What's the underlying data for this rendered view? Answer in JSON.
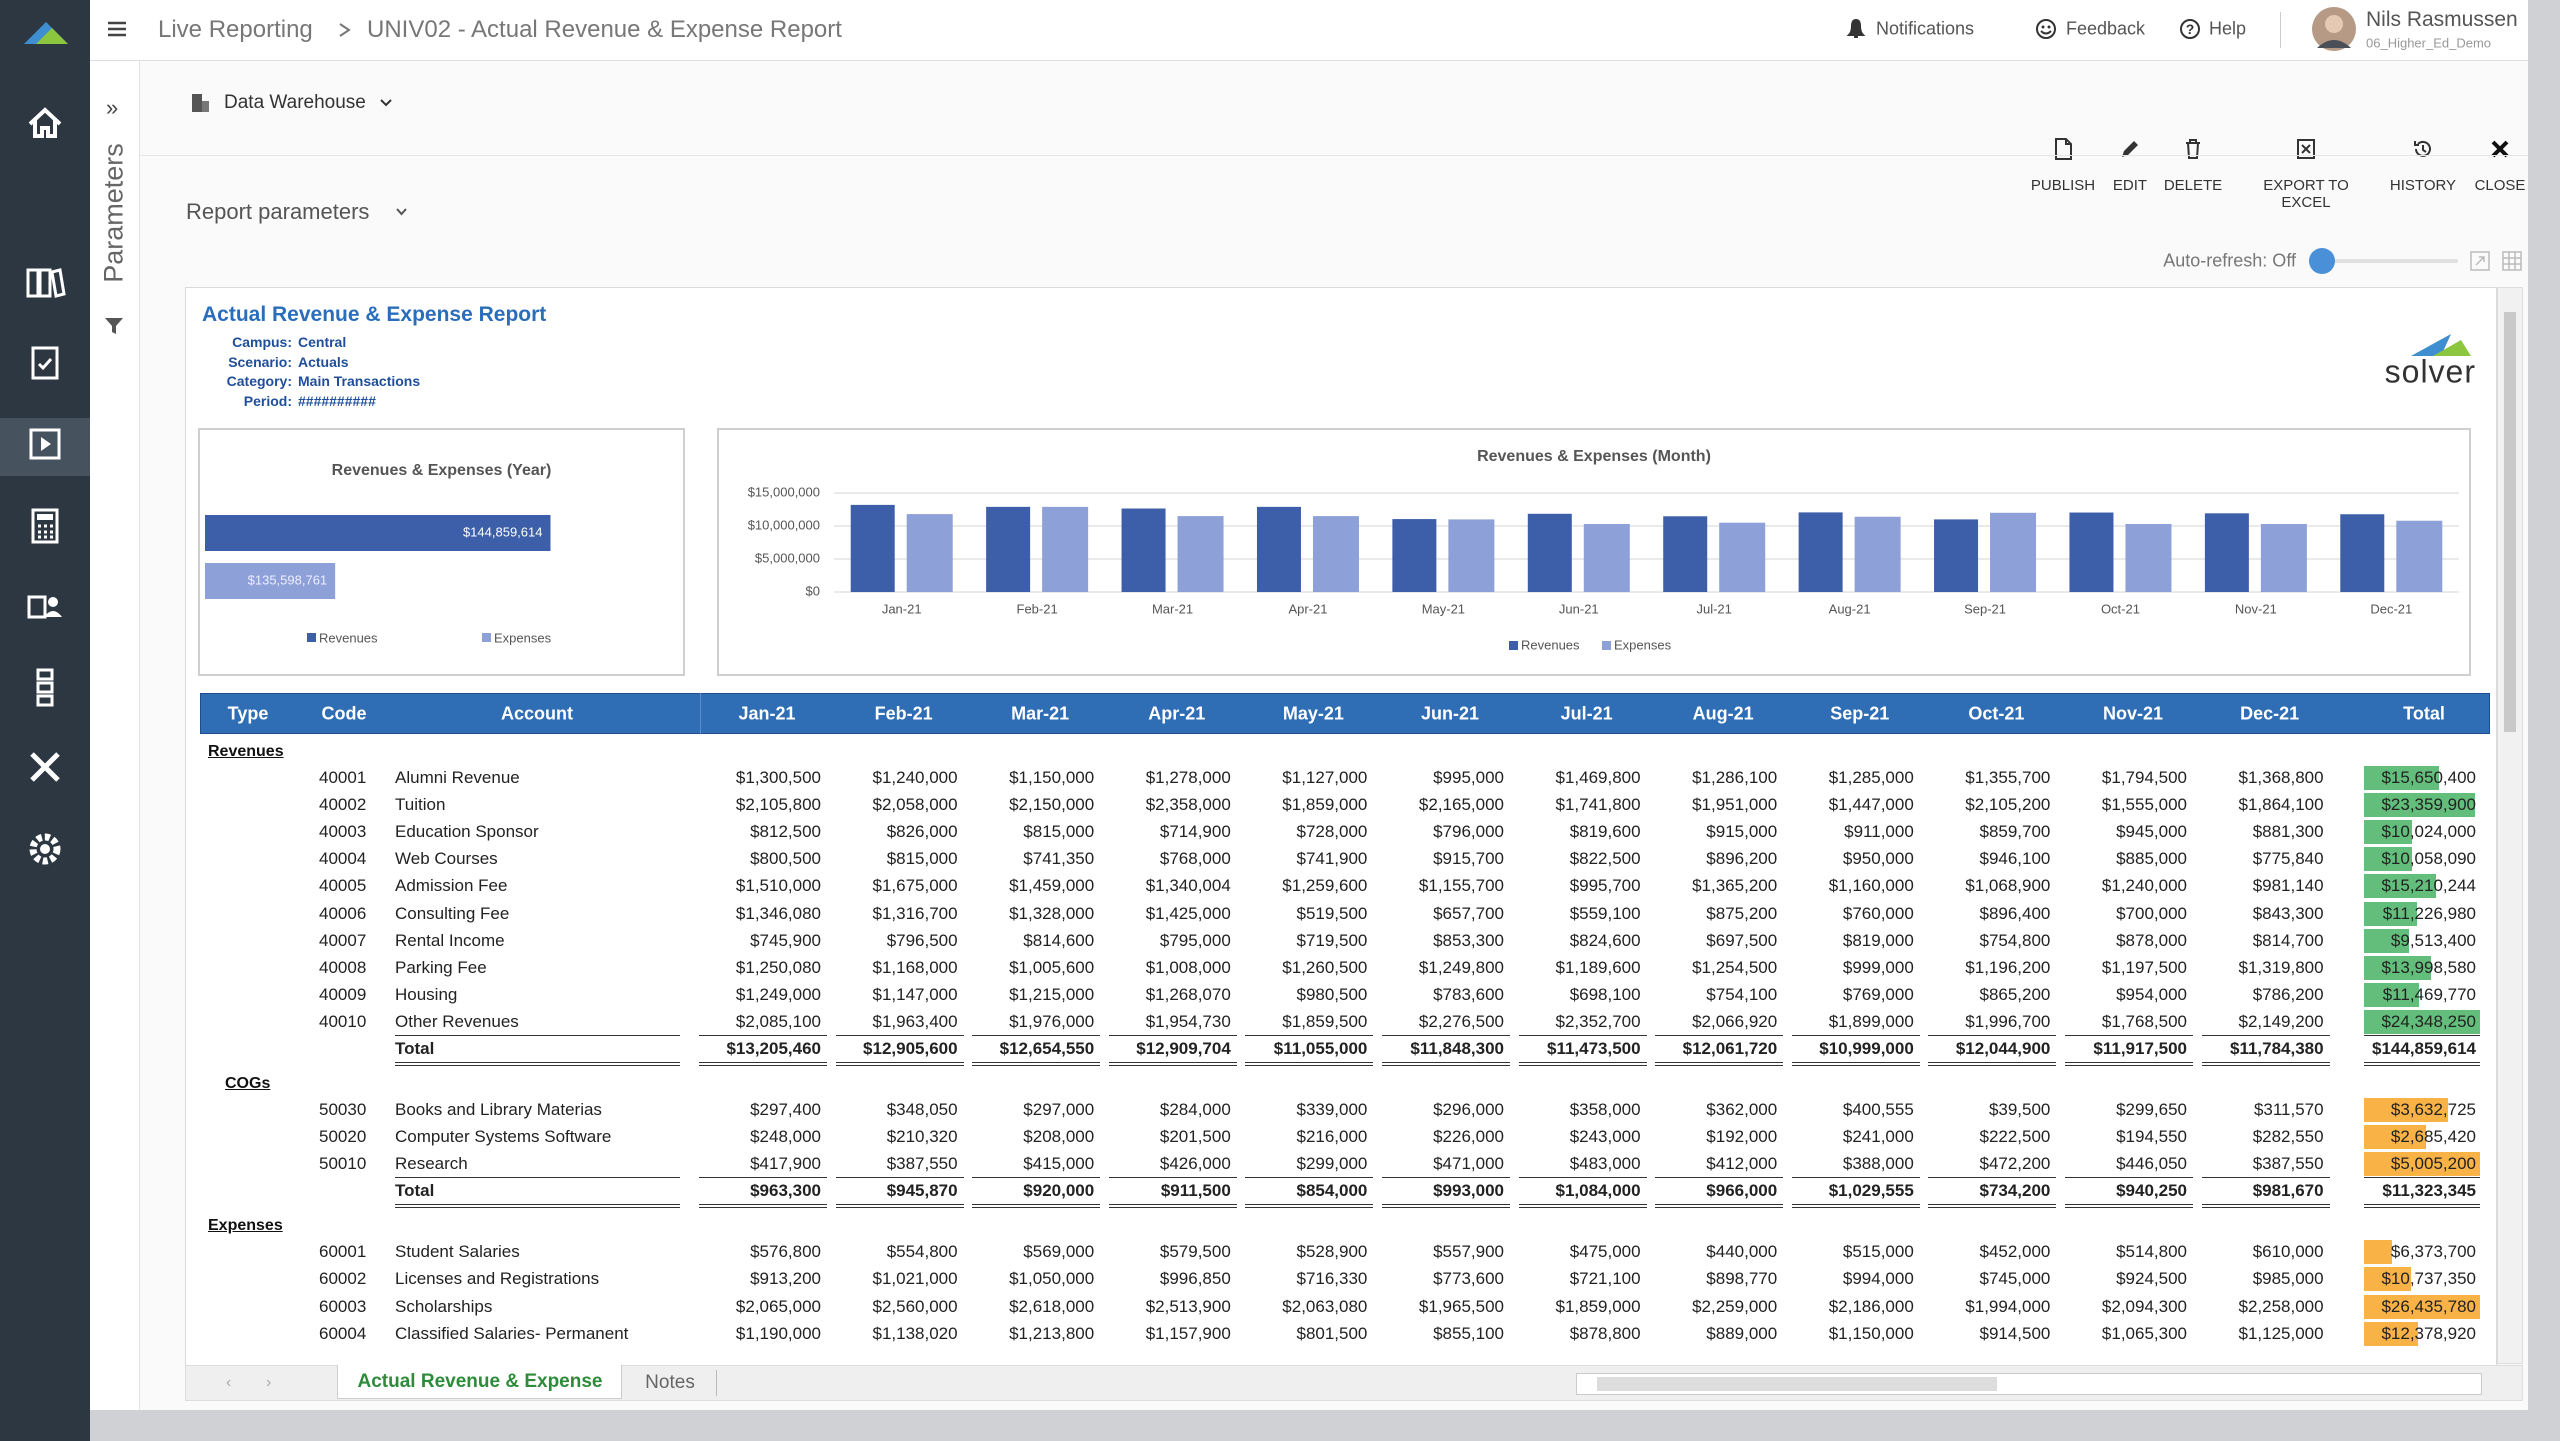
{
  "app": {
    "breadcrumb": [
      "Live Reporting",
      "UNIV02 - Actual Revenue & Expense Report"
    ],
    "notifications": "Notifications",
    "feedback": "Feedback",
    "help": "Help",
    "user": {
      "name": "Nils Rasmussen",
      "role": "06_Higher_Ed_Demo"
    }
  },
  "side_panel": "Parameters",
  "source": "Data Warehouse",
  "actions": [
    "PUBLISH",
    "EDIT",
    "DELETE",
    "EXPORT TO EXCEL",
    "HISTORY",
    "CLOSE"
  ],
  "report_parameters": "Report parameters",
  "auto_refresh": "Auto-refresh: Off",
  "report": {
    "title": "Actual Revenue & Expense Report",
    "parameters": [
      {
        "label": "Campus:",
        "value": "Central"
      },
      {
        "label": "Scenario:",
        "value": "Actuals"
      },
      {
        "label": "Category:",
        "value": "Main Transactions"
      },
      {
        "label": "Period:",
        "value": "##########"
      }
    ],
    "logo": "solver"
  },
  "chart_data": [
    {
      "type": "bar",
      "orientation": "horizontal",
      "title": "Revenues & Expenses (Year)",
      "series": [
        {
          "name": "Revenues",
          "color": "#3d5ea9",
          "values": [
            144859614
          ],
          "value_labels": [
            "$144,859,614"
          ]
        },
        {
          "name": "Expenses",
          "color": "#8da0d8",
          "values": [
            135598761
          ],
          "value_labels": [
            "$135,598,761"
          ]
        }
      ],
      "xlim": [
        130000000,
        150000000
      ]
    },
    {
      "type": "bar",
      "title": "Revenues & Expenses (Month)",
      "categories": [
        "Jan-21",
        "Feb-21",
        "Mar-21",
        "Apr-21",
        "May-21",
        "Jun-21",
        "Jul-21",
        "Aug-21",
        "Sep-21",
        "Oct-21",
        "Nov-21",
        "Dec-21"
      ],
      "series": [
        {
          "name": "Revenues",
          "color": "#3d5ea9",
          "values": [
            13200000,
            12900000,
            12650000,
            12900000,
            11050000,
            11850000,
            11470000,
            12060000,
            11000000,
            12040000,
            11920000,
            11780000
          ]
        },
        {
          "name": "Expenses",
          "color": "#8da0d8",
          "values": [
            11800000,
            12900000,
            11500000,
            11500000,
            11000000,
            10300000,
            10500000,
            11400000,
            12000000,
            10300000,
            10300000,
            10800000
          ]
        }
      ],
      "ylim": [
        0,
        15000000
      ],
      "yticks": [
        {
          "value": 0,
          "label": "$0"
        },
        {
          "value": 5000000,
          "label": "$5,000,000"
        },
        {
          "value": 10000000,
          "label": "$10,000,000"
        },
        {
          "value": 15000000,
          "label": "$15,000,000"
        }
      ],
      "grid": true
    }
  ],
  "table": {
    "columns": [
      "Type",
      "Code",
      "Account",
      "Jan-21",
      "Feb-21",
      "Mar-21",
      "Apr-21",
      "May-21",
      "Jun-21",
      "Jul-21",
      "Aug-21",
      "Sep-21",
      "Oct-21",
      "Nov-21",
      "Dec-21",
      "Total"
    ],
    "sections": [
      {
        "name": "Revenues",
        "bar_color": "#63be7b",
        "rows": [
          {
            "code": "40001",
            "account": "Alumni Revenue",
            "values": [
              "$1,300,500",
              "$1,240,000",
              "$1,150,000",
              "$1,278,000",
              "$1,127,000",
              "$995,000",
              "$1,469,800",
              "$1,286,100",
              "$1,285,000",
              "$1,355,700",
              "$1,794,500",
              "$1,368,800"
            ],
            "total": 15650400,
            "total_label": "$15,650,400"
          },
          {
            "code": "40002",
            "account": "Tuition",
            "values": [
              "$2,105,800",
              "$2,058,000",
              "$2,150,000",
              "$2,358,000",
              "$1,859,000",
              "$2,165,000",
              "$1,741,800",
              "$1,951,000",
              "$1,447,000",
              "$2,105,200",
              "$1,555,000",
              "$1,864,100"
            ],
            "total": 23359900,
            "total_label": "$23,359,900"
          },
          {
            "code": "40003",
            "account": "Education Sponsor",
            "values": [
              "$812,500",
              "$826,000",
              "$815,000",
              "$714,900",
              "$728,000",
              "$796,000",
              "$819,600",
              "$915,000",
              "$911,000",
              "$859,700",
              "$945,000",
              "$881,300"
            ],
            "total": 10024000,
            "total_label": "$10,024,000"
          },
          {
            "code": "40004",
            "account": "Web Courses",
            "values": [
              "$800,500",
              "$815,000",
              "$741,350",
              "$768,000",
              "$741,900",
              "$915,700",
              "$822,500",
              "$896,200",
              "$950,000",
              "$946,100",
              "$885,000",
              "$775,840"
            ],
            "total": 10058090,
            "total_label": "$10,058,090"
          },
          {
            "code": "40005",
            "account": "Admission Fee",
            "values": [
              "$1,510,000",
              "$1,675,000",
              "$1,459,000",
              "$1,340,004",
              "$1,259,600",
              "$1,155,700",
              "$995,700",
              "$1,365,200",
              "$1,160,000",
              "$1,068,900",
              "$1,240,000",
              "$981,140"
            ],
            "total": 15210244,
            "total_label": "$15,210,244"
          },
          {
            "code": "40006",
            "account": "Consulting Fee",
            "values": [
              "$1,346,080",
              "$1,316,700",
              "$1,328,000",
              "$1,425,000",
              "$519,500",
              "$657,700",
              "$559,100",
              "$875,200",
              "$760,000",
              "$896,400",
              "$700,000",
              "$843,300"
            ],
            "total": 11226980,
            "total_label": "$11,226,980"
          },
          {
            "code": "40007",
            "account": "Rental Income",
            "values": [
              "$745,900",
              "$796,500",
              "$814,600",
              "$795,000",
              "$719,500",
              "$853,300",
              "$824,600",
              "$697,500",
              "$819,000",
              "$754,800",
              "$878,000",
              "$814,700"
            ],
            "total": 9513400,
            "total_label": "$9,513,400"
          },
          {
            "code": "40008",
            "account": "Parking Fee",
            "values": [
              "$1,250,080",
              "$1,168,000",
              "$1,005,600",
              "$1,008,000",
              "$1,260,500",
              "$1,249,800",
              "$1,189,600",
              "$1,254,500",
              "$999,000",
              "$1,196,200",
              "$1,197,500",
              "$1,319,800"
            ],
            "total": 13998580,
            "total_label": "$13,998,580"
          },
          {
            "code": "40009",
            "account": "Housing",
            "values": [
              "$1,249,000",
              "$1,147,000",
              "$1,215,000",
              "$1,268,070",
              "$980,500",
              "$783,600",
              "$698,100",
              "$754,100",
              "$769,000",
              "$865,200",
              "$954,000",
              "$786,200"
            ],
            "total": 11469770,
            "total_label": "$11,469,770"
          },
          {
            "code": "40010",
            "account": "Other Revenues",
            "values": [
              "$2,085,100",
              "$1,963,400",
              "$1,976,000",
              "$1,954,730",
              "$1,859,500",
              "$2,276,500",
              "$2,352,700",
              "$2,066,920",
              "$1,899,000",
              "$1,996,700",
              "$1,768,500",
              "$2,149,200"
            ],
            "total": 24348250,
            "total_label": "$24,348,250"
          }
        ],
        "total": {
          "label": "Total",
          "values": [
            "$13,205,460",
            "$12,905,600",
            "$12,654,550",
            "$12,909,704",
            "$11,055,000",
            "$11,848,300",
            "$11,473,500",
            "$12,061,720",
            "$10,999,000",
            "$12,044,900",
            "$11,917,500",
            "$11,784,380"
          ],
          "total_label": "$144,859,614"
        }
      },
      {
        "name": "COGs",
        "bar_color": "#f8b246",
        "rows": [
          {
            "code": "50030",
            "account": "Books and Library Materias",
            "values": [
              "$297,400",
              "$348,050",
              "$297,000",
              "$284,000",
              "$339,000",
              "$296,000",
              "$358,000",
              "$362,000",
              "$400,555",
              "$39,500",
              "$299,650",
              "$311,570"
            ],
            "total": 3632725,
            "total_label": "$3,632,725"
          },
          {
            "code": "50020",
            "account": "Computer Systems Software",
            "values": [
              "$248,000",
              "$210,320",
              "$208,000",
              "$201,500",
              "$216,000",
              "$226,000",
              "$243,000",
              "$192,000",
              "$241,000",
              "$222,500",
              "$194,550",
              "$282,550"
            ],
            "total": 2685420,
            "total_label": "$2,685,420"
          },
          {
            "code": "50010",
            "account": "Research",
            "values": [
              "$417,900",
              "$387,550",
              "$415,000",
              "$426,000",
              "$299,000",
              "$471,000",
              "$483,000",
              "$412,000",
              "$388,000",
              "$472,200",
              "$446,050",
              "$387,550"
            ],
            "total": 5005200,
            "total_label": "$5,005,200"
          }
        ],
        "total": {
          "label": "Total",
          "values": [
            "$963,300",
            "$945,870",
            "$920,000",
            "$911,500",
            "$854,000",
            "$993,000",
            "$1,084,000",
            "$966,000",
            "$1,029,555",
            "$734,200",
            "$940,250",
            "$981,670"
          ],
          "total_label": "$11,323,345"
        }
      },
      {
        "name": "Expenses",
        "bar_color": "#f8b246",
        "rows": [
          {
            "code": "60001",
            "account": "Student Salaries",
            "values": [
              "$576,800",
              "$554,800",
              "$569,000",
              "$579,500",
              "$528,900",
              "$557,900",
              "$475,000",
              "$440,000",
              "$515,000",
              "$452,000",
              "$514,800",
              "$610,000"
            ],
            "total": 6373700,
            "total_label": "$6,373,700"
          },
          {
            "code": "60002",
            "account": "Licenses and Registrations",
            "values": [
              "$913,200",
              "$1,021,000",
              "$1,050,000",
              "$996,850",
              "$716,330",
              "$773,600",
              "$721,100",
              "$898,770",
              "$994,000",
              "$745,000",
              "$924,500",
              "$985,000"
            ],
            "total": 10737350,
            "total_label": "$10,737,350"
          },
          {
            "code": "60003",
            "account": "Scholarships",
            "values": [
              "$2,065,000",
              "$2,560,000",
              "$2,618,000",
              "$2,513,900",
              "$2,063,080",
              "$1,965,500",
              "$1,859,000",
              "$2,259,000",
              "$2,186,000",
              "$1,994,000",
              "$2,094,300",
              "$2,258,000"
            ],
            "total": 26435780,
            "total_label": "$26,435,780"
          },
          {
            "code": "60004",
            "account": "Classified Salaries- Permanent",
            "values": [
              "$1,190,000",
              "$1,138,020",
              "$1,213,800",
              "$1,157,900",
              "$801,500",
              "$855,100",
              "$878,800",
              "$889,000",
              "$1,150,000",
              "$914,500",
              "$1,065,300",
              "$1,125,000"
            ],
            "total": 12378920,
            "total_label": "$12,378,920"
          }
        ]
      }
    ]
  },
  "tabs": [
    "Actual Revenue & Expense",
    "Notes"
  ]
}
